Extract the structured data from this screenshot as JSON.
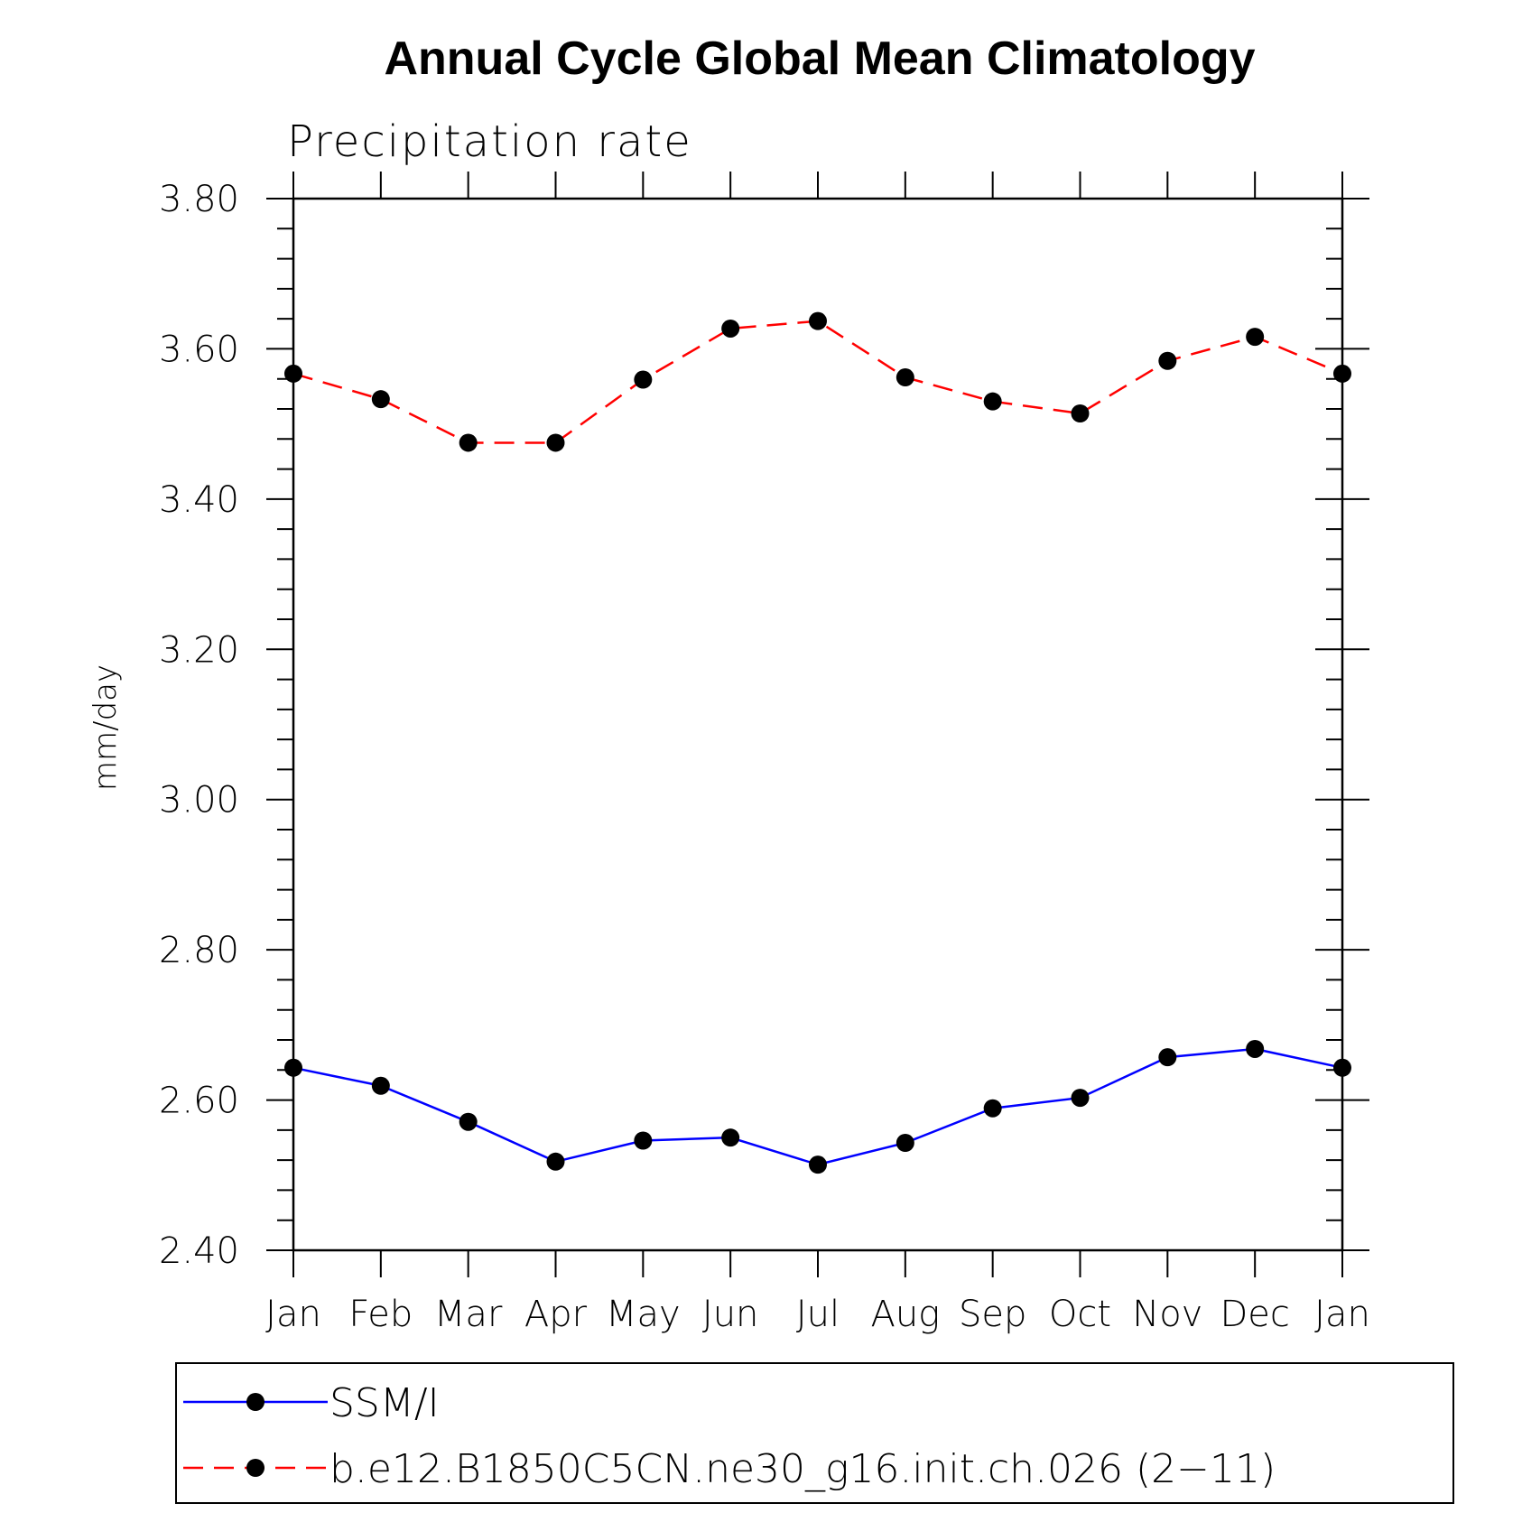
{
  "chart_data": {
    "type": "line",
    "title": "Annual Cycle Global Mean Climatology",
    "subtitle": "Precipitation rate",
    "xlabel": "",
    "ylabel": "mm/day",
    "ylim": [
      2.4,
      3.8
    ],
    "categories": [
      "Jan",
      "Feb",
      "Mar",
      "Apr",
      "May",
      "Jun",
      "Jul",
      "Aug",
      "Sep",
      "Oct",
      "Nov",
      "Dec",
      "Jan"
    ],
    "yticks": [
      "2.40",
      "2.60",
      "2.80",
      "3.00",
      "3.20",
      "3.40",
      "3.60",
      "3.80"
    ],
    "legend_position": "bottom",
    "series": [
      {
        "name": "SSM/I",
        "color": "#0000ff",
        "style": "solid",
        "values": [
          2.643,
          2.619,
          2.571,
          2.518,
          2.546,
          2.55,
          2.514,
          2.543,
          2.589,
          2.603,
          2.657,
          2.668,
          2.643
        ]
      },
      {
        "name": "b.e12.B1850C5CN.ne30_g16.init.ch.026 (2−11)",
        "color": "#ff0000",
        "style": "dashed",
        "values": [
          3.567,
          3.533,
          3.475,
          3.475,
          3.559,
          3.627,
          3.637,
          3.562,
          3.53,
          3.514,
          3.584,
          3.616,
          3.567
        ]
      }
    ]
  }
}
